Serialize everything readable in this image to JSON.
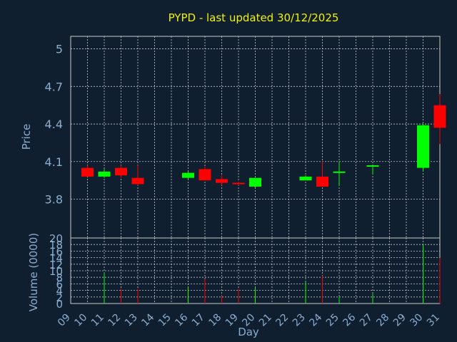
{
  "chart_data": {
    "title": "PYPD - last updated 30/12/2025",
    "type": "candlestick",
    "x_ticks": [
      "09",
      "10",
      "11",
      "12",
      "13",
      "14",
      "15",
      "16",
      "17",
      "18",
      "19",
      "20",
      "21",
      "22",
      "23",
      "24",
      "25",
      "26",
      "27",
      "28",
      "29",
      "30",
      "31"
    ],
    "xlabel": "Day",
    "price_panel": {
      "ylabel": "Price",
      "ylim": [
        3.49,
        5.1
      ],
      "y_ticks": [
        "3.8",
        "4.1",
        "4.4",
        "4.7",
        "5"
      ],
      "grid": true
    },
    "volume_panel": {
      "ylabel": "Volume (0000)",
      "ylim": [
        0,
        20
      ],
      "y_ticks": [
        "0",
        "2",
        "4",
        "6",
        "8",
        "10",
        "12",
        "14",
        "16",
        "18",
        "20"
      ],
      "grid": true
    },
    "candles": [
      {
        "day": "09",
        "open": 4.05,
        "high": 4.07,
        "low": 3.98,
        "close": 3.98,
        "volume": 0
      },
      {
        "day": "10",
        "open": 3.98,
        "high": 4.04,
        "low": 3.97,
        "close": 4.02,
        "volume": 9.5
      },
      {
        "day": "11",
        "open": 4.05,
        "high": 4.07,
        "low": 3.97,
        "close": 3.99,
        "volume": 4.5
      },
      {
        "day": "12",
        "open": 3.97,
        "high": 4.07,
        "low": 3.91,
        "close": 3.92,
        "volume": 4.5
      },
      {
        "day": "15",
        "open": 3.97,
        "high": 4.02,
        "low": 3.96,
        "close": 4.01,
        "volume": 5
      },
      {
        "day": "16",
        "open": 4.04,
        "high": 4.06,
        "low": 3.95,
        "close": 3.95,
        "volume": 7.5
      },
      {
        "day": "17",
        "open": 3.96,
        "high": 3.99,
        "low": 3.91,
        "close": 3.93,
        "volume": 2.5
      },
      {
        "day": "18",
        "open": 3.93,
        "high": 3.94,
        "low": 3.91,
        "close": 3.92,
        "volume": 4.5
      },
      {
        "day": "19",
        "open": 3.9,
        "high": 3.97,
        "low": 3.89,
        "close": 3.97,
        "volume": 5
      },
      {
        "day": "22",
        "open": 3.95,
        "high": 3.99,
        "low": 3.95,
        "close": 3.98,
        "volume": 6.5
      },
      {
        "day": "23",
        "open": 3.98,
        "high": 4.1,
        "low": 3.9,
        "close": 3.9,
        "volume": 8.5
      },
      {
        "day": "24",
        "open": 4.01,
        "high": 4.1,
        "low": 3.91,
        "close": 4.02,
        "volume": 2
      },
      {
        "day": "26",
        "open": 4.06,
        "high": 4.07,
        "low": 4.0,
        "close": 4.07,
        "volume": 3
      },
      {
        "day": "29",
        "open": 4.05,
        "high": 4.4,
        "low": 4.02,
        "close": 4.39,
        "volume": 18
      },
      {
        "day": "30",
        "open": 4.55,
        "high": 4.64,
        "low": 4.24,
        "close": 4.37,
        "volume": 14
      }
    ],
    "colors": {
      "up": "#00ff00",
      "down": "#ff0000",
      "background": "#0f1f30",
      "text": "#8aaed0",
      "title": "#f2f200",
      "grid": "#c8c8c8"
    }
  }
}
